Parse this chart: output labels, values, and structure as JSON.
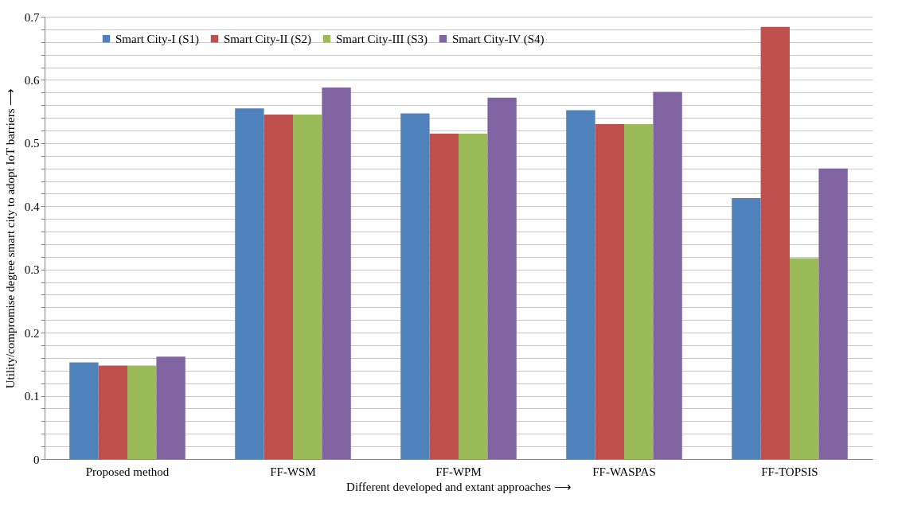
{
  "chart_data": {
    "type": "bar",
    "xlabel": "Different developed and extant approaches ⟶",
    "ylabel": "Utility/compromise degree smart city to adopt IoT barriers ⟶",
    "categories": [
      "Proposed method",
      "FF-WSM",
      "FF-WPM",
      "FF-WASPAS",
      "FF-TOPSIS"
    ],
    "series": [
      {
        "name": "Smart City-I (S1)",
        "color": "#4f81bd",
        "values": [
          0.153,
          0.555,
          0.547,
          0.552,
          0.413
        ]
      },
      {
        "name": "Smart City-II (S2)",
        "color": "#c0504d",
        "values": [
          0.148,
          0.545,
          0.515,
          0.53,
          0.684
        ]
      },
      {
        "name": "Smart City-III (S3)",
        "color": "#9bbb59",
        "values": [
          0.148,
          0.545,
          0.515,
          0.53,
          0.318
        ]
      },
      {
        "name": "Smart City-IV (S4)",
        "color": "#8064a2",
        "values": [
          0.162,
          0.588,
          0.572,
          0.581,
          0.46
        ]
      }
    ],
    "ylim": [
      0,
      0.7
    ],
    "yticks": [
      0,
      {
        "value": 0.02,
        "label": null
      },
      {
        "value": 0.04,
        "label": null
      },
      {
        "value": 0.06,
        "label": null
      },
      {
        "value": 0.08,
        "label": null
      },
      0.1,
      {
        "value": 0.12,
        "label": null
      },
      {
        "value": 0.14,
        "label": null
      },
      {
        "value": 0.16,
        "label": null
      },
      {
        "value": 0.18,
        "label": null
      },
      0.2,
      {
        "value": 0.22,
        "label": null
      },
      {
        "value": 0.24,
        "label": null
      },
      {
        "value": 0.26,
        "label": null
      },
      {
        "value": 0.28,
        "label": null
      },
      0.3,
      {
        "value": 0.32,
        "label": null
      },
      {
        "value": 0.34,
        "label": null
      },
      {
        "value": 0.36,
        "label": null
      },
      {
        "value": 0.38,
        "label": null
      },
      0.4,
      {
        "value": 0.42,
        "label": null
      },
      {
        "value": 0.44,
        "label": null
      },
      {
        "value": 0.46,
        "label": null
      },
      {
        "value": 0.48,
        "label": null
      },
      0.5,
      {
        "value": 0.52,
        "label": null
      },
      {
        "value": 0.54,
        "label": null
      },
      {
        "value": 0.56,
        "label": null
      },
      {
        "value": 0.58,
        "label": null
      },
      0.6,
      {
        "value": 0.62,
        "label": null
      },
      {
        "value": 0.64,
        "label": null
      },
      {
        "value": 0.66,
        "label": null
      },
      {
        "value": 0.68,
        "label": null
      },
      0.7
    ],
    "grid": true,
    "legend": "top"
  }
}
